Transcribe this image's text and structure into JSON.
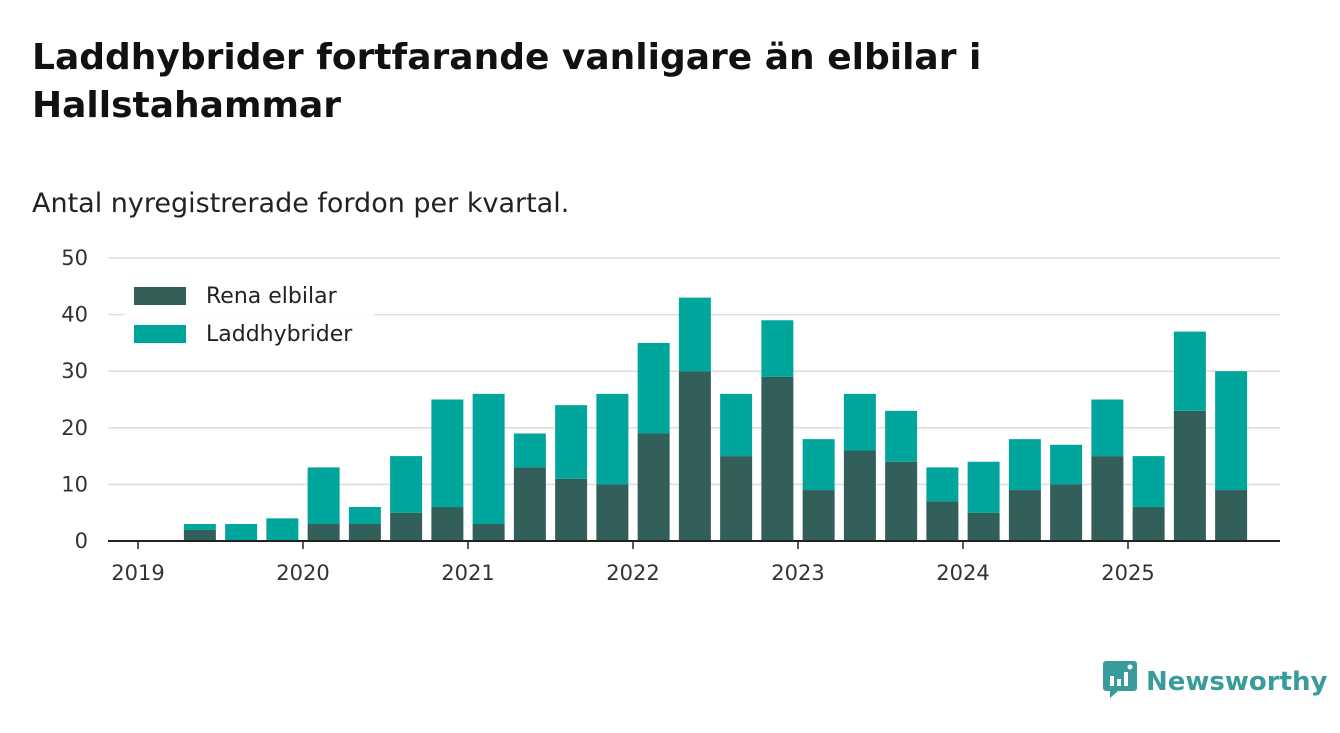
{
  "title": "Laddhybrider fortfarande vanligare än elbilar i Hallstahammar",
  "subtitle": "Antal nyregistrerade fordon per kvartal.",
  "brand": {
    "name": "Newsworthy",
    "logo_icon": "newsworthy-logo-icon"
  },
  "colors": {
    "elbilar": "#335f5b",
    "laddhybrider": "#00a69c",
    "grid": "#dddddd",
    "axis": "#222222"
  },
  "chart_data": {
    "type": "bar",
    "stacked": true,
    "title": "Laddhybrider fortfarande vanligare än elbilar i Hallstahammar",
    "subtitle": "Antal nyregistrerade fordon per kvartal.",
    "xlabel": "",
    "ylabel": "",
    "ylim": [
      0,
      50
    ],
    "yticks": [
      0,
      10,
      20,
      30,
      40,
      50
    ],
    "x_tick_labels": [
      "2019",
      "2020",
      "2021",
      "2022",
      "2023",
      "2024",
      "2025"
    ],
    "categories": [
      "2019 Q1",
      "2019 Q2",
      "2019 Q3",
      "2019 Q4",
      "2020 Q1",
      "2020 Q2",
      "2020 Q3",
      "2020 Q4",
      "2021 Q1",
      "2021 Q2",
      "2021 Q3",
      "2021 Q4",
      "2022 Q1",
      "2022 Q2",
      "2022 Q3",
      "2022 Q4",
      "2023 Q1",
      "2023 Q2",
      "2023 Q3",
      "2023 Q4",
      "2024 Q1",
      "2024 Q2",
      "2024 Q3",
      "2024 Q4",
      "2025 Q1",
      "2025 Q2",
      "2025 Q3"
    ],
    "legend_position": "top-left",
    "series": [
      {
        "name": "Rena elbilar",
        "color": "#335f5b",
        "values": [
          0,
          2,
          0,
          0,
          3,
          3,
          5,
          6,
          3,
          13,
          11,
          10,
          19,
          30,
          15,
          29,
          9,
          16,
          14,
          7,
          5,
          9,
          10,
          15,
          6,
          23,
          9
        ]
      },
      {
        "name": "Laddhybrider",
        "color": "#00a69c",
        "values": [
          0,
          1,
          3,
          4,
          10,
          3,
          10,
          19,
          23,
          6,
          13,
          16,
          16,
          13,
          11,
          10,
          9,
          10,
          9,
          6,
          9,
          9,
          7,
          10,
          9,
          14,
          21
        ]
      }
    ]
  }
}
